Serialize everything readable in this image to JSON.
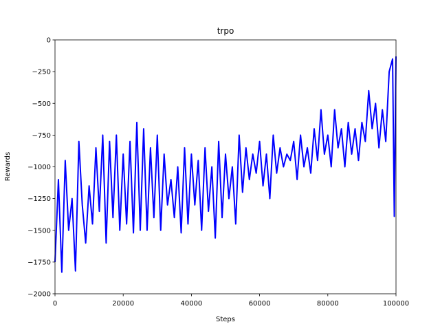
{
  "chart_data": {
    "type": "line",
    "title": "trpo",
    "x_label": "Steps",
    "y_label": "Rewards",
    "x": [
      0,
      1000,
      2000,
      3000,
      4000,
      5000,
      6000,
      7000,
      8000,
      9000,
      10000,
      11000,
      12000,
      13000,
      14000,
      15000,
      16000,
      17000,
      18000,
      19000,
      20000,
      21000,
      22000,
      23000,
      24000,
      25000,
      26000,
      27000,
      28000,
      29000,
      30000,
      31000,
      32000,
      33000,
      34000,
      35000,
      36000,
      37000,
      38000,
      39000,
      40000,
      41000,
      42000,
      43000,
      44000,
      45000,
      46000,
      47000,
      48000,
      49000,
      50000,
      51000,
      52000,
      53000,
      54000,
      55000,
      56000,
      57000,
      58000,
      59000,
      60000,
      61000,
      62000,
      63000,
      64000,
      65000,
      66000,
      67000,
      68000,
      69000,
      70000,
      71000,
      72000,
      73000,
      74000,
      75000,
      76000,
      77000,
      78000,
      79000,
      80000,
      81000,
      82000,
      83000,
      84000,
      85000,
      86000,
      87000,
      88000,
      89000,
      90000,
      91000,
      92000,
      93000,
      94000,
      95000,
      96000,
      97000,
      98000,
      99000,
      99500,
      100000
    ],
    "series": [
      {
        "name": "trpo",
        "color": "#0000ff",
        "values": [
          -1750,
          -1100,
          -1830,
          -950,
          -1500,
          -1250,
          -1820,
          -800,
          -1300,
          -1600,
          -1150,
          -1450,
          -850,
          -1350,
          -750,
          -1600,
          -800,
          -1400,
          -750,
          -1500,
          -900,
          -1450,
          -800,
          -1520,
          -650,
          -1500,
          -700,
          -1500,
          -850,
          -1400,
          -750,
          -1500,
          -900,
          -1300,
          -1100,
          -1400,
          -1000,
          -1520,
          -850,
          -1450,
          -900,
          -1300,
          -950,
          -1500,
          -850,
          -1350,
          -1000,
          -1560,
          -800,
          -1400,
          -900,
          -1250,
          -1000,
          -1450,
          -750,
          -1200,
          -850,
          -1100,
          -900,
          -1050,
          -800,
          -1150,
          -900,
          -1250,
          -750,
          -1050,
          -850,
          -1000,
          -900,
          -950,
          -800,
          -1100,
          -750,
          -1000,
          -850,
          -1050,
          -700,
          -950,
          -550,
          -900,
          -750,
          -1000,
          -550,
          -850,
          -700,
          -1000,
          -650,
          -900,
          -700,
          -950,
          -650,
          -800,
          -400,
          -700,
          -500,
          -850,
          -550,
          -800,
          -250,
          -150,
          -1390,
          -130
        ]
      }
    ],
    "xlim": [
      0,
      100000
    ],
    "xticks": [
      0,
      20000,
      40000,
      60000,
      80000,
      100000
    ],
    "ylim": [
      -2000,
      0
    ],
    "yticks": [
      {
        "value": -2000,
        "label": "−2000"
      },
      {
        "value": -1750,
        "label": "−1750"
      },
      {
        "value": -1500,
        "label": "−1500"
      },
      {
        "value": -1250,
        "label": "−1250"
      },
      {
        "value": -1000,
        "label": "−1000"
      },
      {
        "value": -750,
        "label": "−750"
      },
      {
        "value": -500,
        "label": "−500"
      },
      {
        "value": -250,
        "label": "−250"
      },
      0
    ],
    "grid": false
  }
}
